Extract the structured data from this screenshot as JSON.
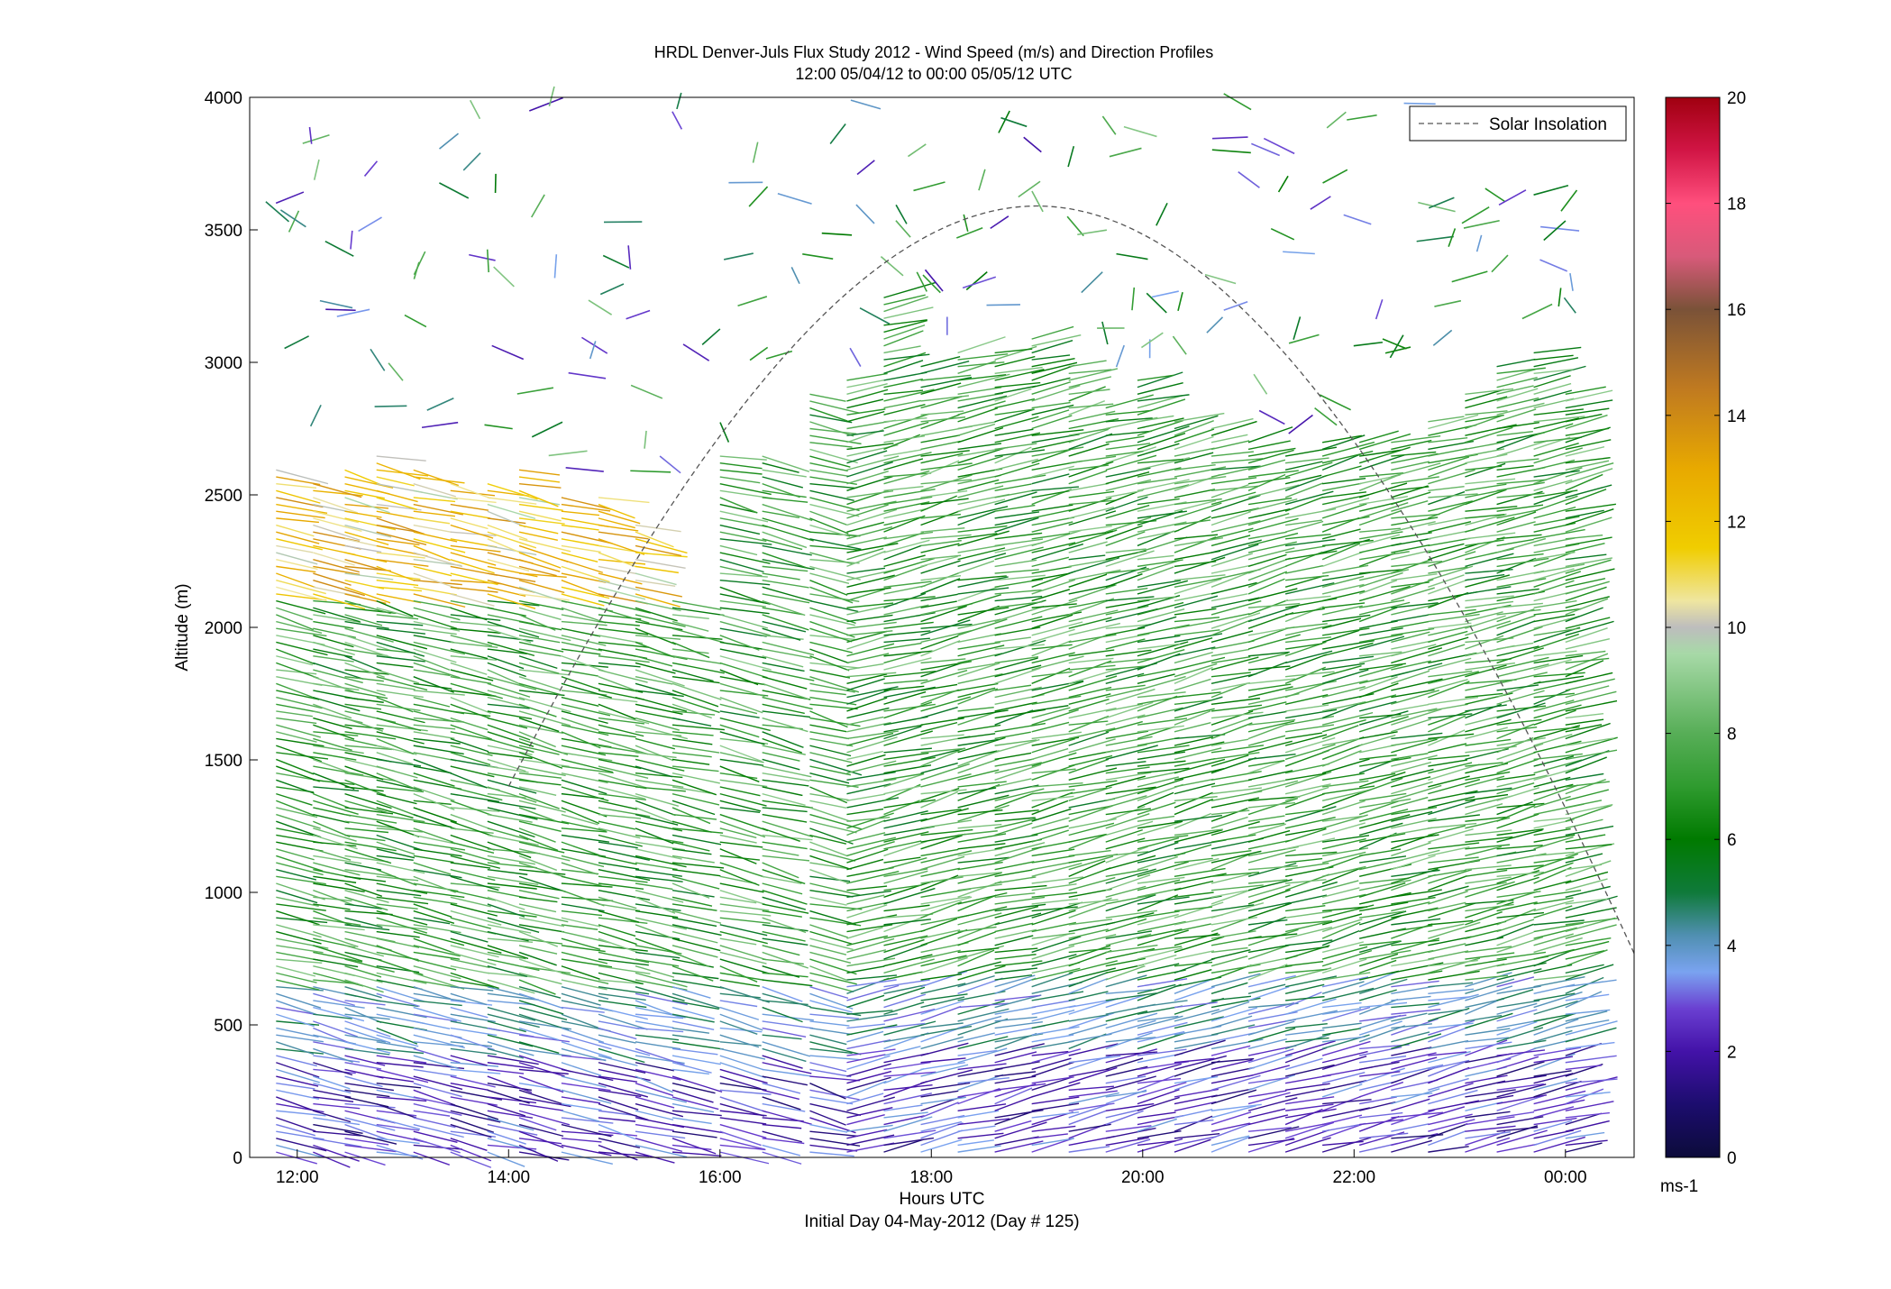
{
  "chart_data": {
    "type": "wind_barb_profile",
    "title": "HRDL Denver-Juls Flux Study 2012 - Wind Speed (m/s) and Direction Profiles",
    "subtitle": "12:00 05/04/12 to 00:00 05/05/12  UTC",
    "xlabel": "Hours UTC",
    "xlabel2": "Initial Day 04-May-2012 (Day # 125)",
    "ylabel": "Altitude (m)",
    "xlim_hours": [
      11.55,
      24.65
    ],
    "ylim": [
      0,
      4000
    ],
    "x_ticks": [
      {
        "hour": 12,
        "label": "12:00"
      },
      {
        "hour": 14,
        "label": "14:00"
      },
      {
        "hour": 16,
        "label": "16:00"
      },
      {
        "hour": 18,
        "label": "18:00"
      },
      {
        "hour": 20,
        "label": "20:00"
      },
      {
        "hour": 22,
        "label": "22:00"
      },
      {
        "hour": 24,
        "label": "00:00"
      }
    ],
    "y_ticks": [
      0,
      500,
      1000,
      1500,
      2000,
      2500,
      3000,
      3500,
      4000
    ],
    "legend": {
      "label": "Solar Insolation",
      "placement": "top-right"
    },
    "solar_insolation": {
      "peak_hour": 19.0,
      "peak_altitude_equiv": 3590,
      "start_hour": 14.0,
      "start_altitude_equiv": 1400,
      "end_hour": 24.65,
      "end_altitude_equiv": 770
    },
    "colorbar": {
      "label": "ms-1",
      "ticks": [
        0,
        2,
        4,
        6,
        8,
        10,
        12,
        14,
        16,
        18,
        20
      ],
      "range": [
        0,
        20
      ],
      "stops": [
        {
          "v": 0,
          "color": "#0c0b3a"
        },
        {
          "v": 1,
          "color": "#1c0d6e"
        },
        {
          "v": 2,
          "color": "#4312a8"
        },
        {
          "v": 2.8,
          "color": "#6a3fd1"
        },
        {
          "v": 3.5,
          "color": "#7aa3f0"
        },
        {
          "v": 4.2,
          "color": "#4f8fb0"
        },
        {
          "v": 5,
          "color": "#0f7a3a"
        },
        {
          "v": 6,
          "color": "#007a00"
        },
        {
          "v": 7,
          "color": "#2f9b2f"
        },
        {
          "v": 8,
          "color": "#57ae57"
        },
        {
          "v": 9.5,
          "color": "#a7d9a7"
        },
        {
          "v": 10,
          "color": "#bdbdbd"
        },
        {
          "v": 10.5,
          "color": "#efe6a0"
        },
        {
          "v": 11.5,
          "color": "#f0cd00"
        },
        {
          "v": 13,
          "color": "#e8a900"
        },
        {
          "v": 14.5,
          "color": "#c07a20"
        },
        {
          "v": 16,
          "color": "#7a5238"
        },
        {
          "v": 17,
          "color": "#d85a7a"
        },
        {
          "v": 18,
          "color": "#ff4f7d"
        },
        {
          "v": 19,
          "color": "#d11545"
        },
        {
          "v": 20,
          "color": "#a00010"
        }
      ]
    },
    "profiles": [
      {
        "hour": 11.8,
        "top": 2600
      },
      {
        "hour": 12.15,
        "top": 2550
      },
      {
        "hour": 12.45,
        "top": 2600
      },
      {
        "hour": 12.75,
        "top": 2650
      },
      {
        "hour": 13.1,
        "top": 2600
      },
      {
        "hour": 13.45,
        "top": 2550
      },
      {
        "hour": 13.8,
        "top": 2550
      },
      {
        "hour": 14.1,
        "top": 2600
      },
      {
        "hour": 14.5,
        "top": 2500
      },
      {
        "hour": 14.85,
        "top": 2500
      },
      {
        "hour": 15.2,
        "top": 2400
      },
      {
        "hour": 15.55,
        "top": 2100
      },
      {
        "hour": 16.0,
        "top": 2650
      },
      {
        "hour": 16.4,
        "top": 2650
      },
      {
        "hour": 16.85,
        "top": 2900
      },
      {
        "hour": 17.2,
        "top": 2950
      },
      {
        "hour": 17.55,
        "top": 3250
      },
      {
        "hour": 17.9,
        "top": 3000
      },
      {
        "hour": 18.25,
        "top": 3050
      },
      {
        "hour": 18.6,
        "top": 3050
      },
      {
        "hour": 18.95,
        "top": 3100
      },
      {
        "hour": 19.3,
        "top": 3000
      },
      {
        "hour": 19.65,
        "top": 2850
      },
      {
        "hour": 19.95,
        "top": 2950
      },
      {
        "hour": 20.3,
        "top": 2800
      },
      {
        "hour": 20.65,
        "top": 2750
      },
      {
        "hour": 21.0,
        "top": 2700
      },
      {
        "hour": 21.35,
        "top": 2650
      },
      {
        "hour": 21.7,
        "top": 2700
      },
      {
        "hour": 22.05,
        "top": 2700
      },
      {
        "hour": 22.35,
        "top": 2700
      },
      {
        "hour": 22.7,
        "top": 2800
      },
      {
        "hour": 23.05,
        "top": 2900
      },
      {
        "hour": 23.35,
        "top": 3000
      },
      {
        "hour": 23.7,
        "top": 3050
      },
      {
        "hour": 24.0,
        "top": 2900
      }
    ]
  }
}
